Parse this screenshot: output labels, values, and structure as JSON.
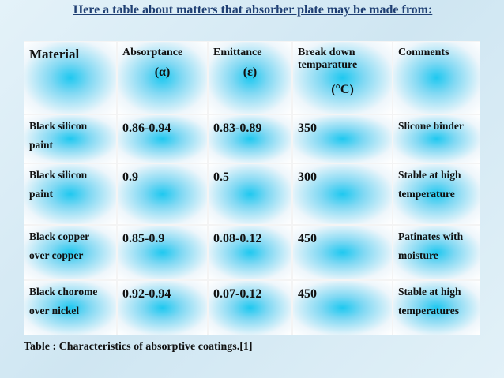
{
  "title": "Here a table about matters that absorber plate may be made from:",
  "table": {
    "header": [
      [
        "Material"
      ],
      [
        "Absorptance",
        "(α)"
      ],
      [
        "Emittance",
        "(ε)"
      ],
      [
        "Break down temparature",
        "(°C)"
      ],
      [
        "Comments"
      ]
    ],
    "rows": [
      [
        "Black silicon paint",
        "0.86-0.94",
        "0.83-0.89",
        "350",
        "Slicone binder"
      ],
      [
        "Black silicon paint",
        "0.9",
        "0.5",
        "300",
        "Stable at high temperature"
      ],
      [
        "Black copper over copper",
        "0.85-0.9",
        "0.08-0.12",
        "450",
        "Patinates with moisture"
      ],
      [
        "Black chorome over nickel",
        "0.92-0.94",
        "0.07-0.12",
        "450",
        "Stable at high temperatures"
      ]
    ]
  },
  "caption": "Table : Characteristics of absorptive coatings.[1]"
}
